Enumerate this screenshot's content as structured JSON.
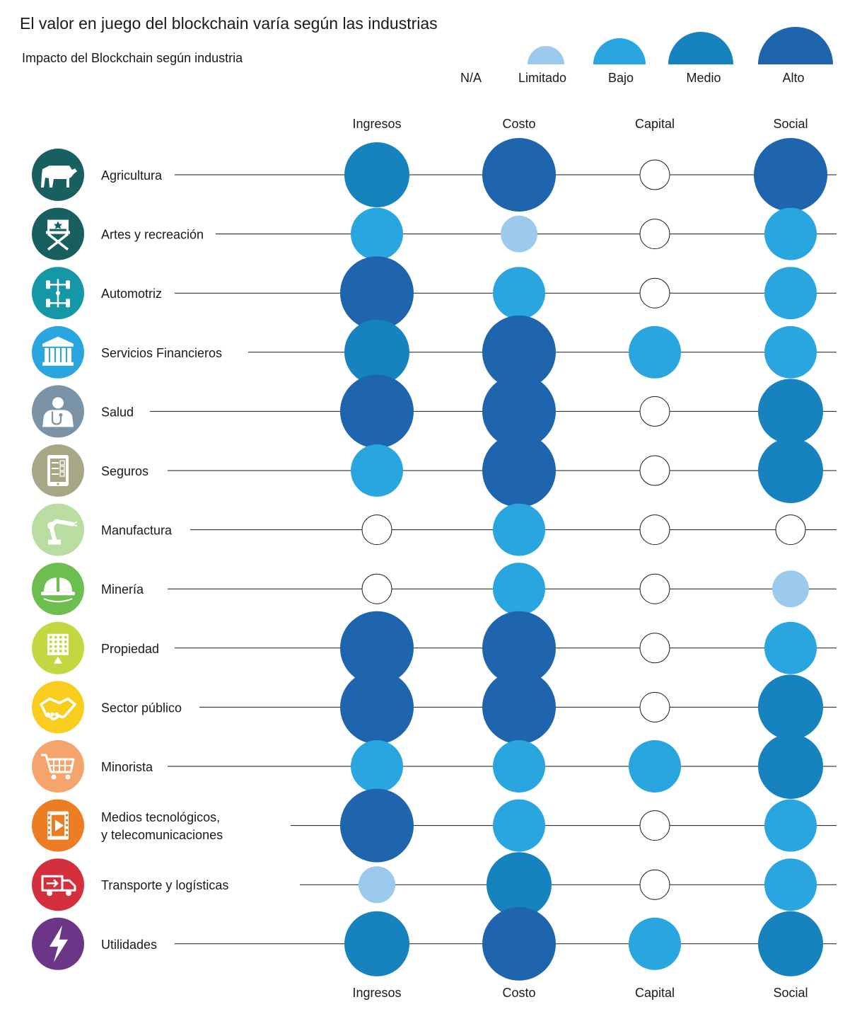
{
  "chart_data": {
    "type": "bubble-matrix",
    "title": "El valor en juego del blockchain varía según las industrias",
    "subtitle": "Impacto del Blockchain según industria",
    "legend": {
      "placement": "top-right",
      "levels": [
        {
          "key": "na",
          "label": "N/A",
          "color": "#ffffff",
          "rank": 0
        },
        {
          "key": "limitado",
          "label": "Limitado",
          "color": "#9ccaec",
          "rank": 1
        },
        {
          "key": "bajo",
          "label": "Bajo",
          "color": "#29a6e0",
          "rank": 2
        },
        {
          "key": "medio",
          "label": "Medio",
          "color": "#1783be",
          "rank": 3
        },
        {
          "key": "alto",
          "label": "Alto",
          "color": "#1f65ad",
          "rank": 4
        }
      ]
    },
    "columns": [
      "Ingresos",
      "Costo",
      "Capital",
      "Social"
    ],
    "rows": [
      {
        "label": [
          "Agricultura"
        ],
        "icon": "cow-icon",
        "icon_color": "#17605f",
        "values": [
          "medio",
          "alto",
          "na",
          "alto"
        ]
      },
      {
        "label": [
          "Artes y recreación"
        ],
        "icon": "directors-chair-icon",
        "icon_color": "#17605f",
        "values": [
          "bajo",
          "limitado",
          "na",
          "bajo"
        ]
      },
      {
        "label": [
          "Automotriz"
        ],
        "icon": "car-chassis-icon",
        "icon_color": "#1497a6",
        "values": [
          "alto",
          "bajo",
          "na",
          "bajo"
        ]
      },
      {
        "label": [
          "Servicios Financieros"
        ],
        "icon": "bank-icon",
        "icon_color": "#29a6e0",
        "values": [
          "medio",
          "alto",
          "bajo",
          "bajo"
        ]
      },
      {
        "label": [
          "Salud"
        ],
        "icon": "doctor-icon",
        "icon_color": "#7a93a6",
        "values": [
          "alto",
          "alto",
          "na",
          "medio"
        ]
      },
      {
        "label": [
          "Seguros"
        ],
        "icon": "tablet-checklist-icon",
        "icon_color": "#a7a785",
        "values": [
          "bajo",
          "alto",
          "na",
          "medio"
        ]
      },
      {
        "label": [
          "Manufactura"
        ],
        "icon": "robot-arm-icon",
        "icon_color": "#b9dca1",
        "values": [
          "na",
          "bajo",
          "na",
          "na"
        ]
      },
      {
        "label": [
          "Minería"
        ],
        "icon": "hard-hat-icon",
        "icon_color": "#6cbe4e",
        "values": [
          "na",
          "bajo",
          "na",
          "limitado"
        ]
      },
      {
        "label": [
          "Propiedad"
        ],
        "icon": "building-icon",
        "icon_color": "#c3d740",
        "values": [
          "alto",
          "alto",
          "na",
          "bajo"
        ]
      },
      {
        "label": [
          "Sector público"
        ],
        "icon": "handshake-icon",
        "icon_color": "#f8cd1e",
        "values": [
          "alto",
          "alto",
          "na",
          "medio"
        ]
      },
      {
        "label": [
          "Minorista"
        ],
        "icon": "shopping-cart-icon",
        "icon_color": "#f4a46c",
        "values": [
          "bajo",
          "bajo",
          "bajo",
          "medio"
        ]
      },
      {
        "label": [
          "Medios tecnológicos,",
          "y telecomunicaciones"
        ],
        "icon": "video-play-icon",
        "icon_color": "#ec7d22",
        "values": [
          "alto",
          "bajo",
          "na",
          "bajo"
        ]
      },
      {
        "label": [
          "Transporte y logísticas"
        ],
        "icon": "delivery-truck-icon",
        "icon_color": "#d32f3c",
        "values": [
          "limitado",
          "medio",
          "na",
          "bajo"
        ]
      },
      {
        "label": [
          "Utilidades"
        ],
        "icon": "lightning-icon",
        "icon_color": "#6b3687",
        "values": [
          "medio",
          "alto",
          "bajo",
          "medio"
        ]
      }
    ]
  }
}
